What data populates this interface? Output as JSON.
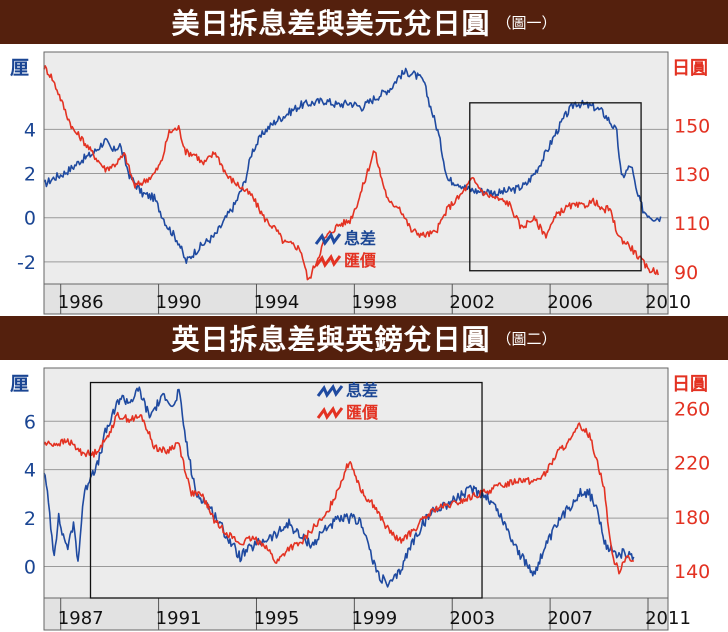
{
  "chart_data": [
    {
      "type": "line",
      "title": "美日拆息差與美元兌日圓",
      "subtitle": "（圖一）",
      "ylabel_left": "厘",
      "ylabel_right": "日圓",
      "xlim": [
        1984.5,
        2010
      ],
      "ylim_left": [
        -3,
        7.5
      ],
      "ylim_right": [
        85,
        180
      ],
      "yticks_left": [
        "4",
        "2",
        "0",
        "-2"
      ],
      "ytick_values_left": [
        4,
        2,
        0,
        -2
      ],
      "yticks_right": [
        "150",
        "130",
        "110",
        "90"
      ],
      "ytick_values_right": [
        150,
        130,
        110,
        90
      ],
      "xticks": [
        "1986",
        "1990",
        "1994",
        "1998",
        "2002",
        "2006",
        "2010"
      ],
      "xtick_values": [
        1986,
        1990,
        1994,
        1998,
        2002,
        2006,
        2010
      ],
      "legend": [
        "息差",
        "匯價"
      ],
      "highlight_box": {
        "x": [
          2001.9,
          2008.9
        ],
        "y_left": [
          -2.4,
          5.2
        ]
      },
      "series": [
        {
          "name": "息差",
          "axis": "left",
          "color": "#1f4aa0",
          "x": [
            1984.5,
            1984.9,
            1985.3,
            1985.7,
            1986.0,
            1986.5,
            1987.0,
            1987.3,
            1987.6,
            1988.0,
            1988.5,
            1989.0,
            1989.5,
            1990.0,
            1990.3,
            1990.7,
            1991.0,
            1991.5,
            1992.0,
            1992.3,
            1992.7,
            1993.0,
            1993.5,
            1994.0,
            1994.3,
            1994.7,
            1995.0,
            1995.5,
            1996.0,
            1996.5,
            1997.0,
            1997.5,
            1998.0,
            1998.3,
            1998.7,
            1999.0,
            1999.3,
            1999.6,
            2000.0,
            2000.3,
            2000.6,
            2001.0,
            2001.4,
            2001.8,
            2002.2,
            2002.6,
            2003.0,
            2003.4,
            2003.8,
            2004.2,
            2004.6,
            2005.0,
            2005.4,
            2005.8,
            2006.2,
            2006.6,
            2007.0,
            2007.3,
            2007.6,
            2007.9,
            2008.1,
            2008.3,
            2008.5,
            2008.7,
            2009.0,
            2009.4,
            2009.7
          ],
          "y": [
            1.5,
            1.8,
            2.0,
            2.3,
            2.6,
            2.9,
            3.5,
            3.0,
            3.3,
            1.9,
            1.1,
            0.9,
            -0.3,
            -1.1,
            -2.0,
            -1.5,
            -1.2,
            -0.8,
            0.1,
            0.6,
            1.6,
            3.0,
            3.9,
            4.4,
            4.6,
            4.9,
            5.1,
            5.2,
            5.3,
            5.1,
            5.2,
            5.0,
            5.4,
            5.6,
            5.9,
            6.4,
            6.6,
            6.5,
            6.2,
            5.0,
            3.9,
            1.7,
            1.6,
            1.3,
            1.2,
            1.2,
            1.1,
            1.2,
            1.3,
            1.5,
            2.1,
            2.9,
            3.8,
            4.6,
            5.2,
            5.1,
            5.0,
            4.8,
            4.4,
            3.9,
            1.8,
            2.1,
            2.4,
            1.2,
            0.3,
            0.0,
            0.0
          ]
        },
        {
          "name": "匯價",
          "axis": "right",
          "color": "#e33222",
          "x": [
            1984.5,
            1984.8,
            1985.1,
            1985.4,
            1985.7,
            1986.0,
            1986.3,
            1986.6,
            1987.0,
            1987.4,
            1987.8,
            1988.2,
            1988.6,
            1989.0,
            1989.3,
            1989.6,
            1990.0,
            1990.3,
            1990.7,
            1991.0,
            1991.5,
            1992.0,
            1992.5,
            1993.0,
            1993.5,
            1994.0,
            1994.3,
            1994.7,
            1995.0,
            1995.3,
            1995.7,
            1996.0,
            1996.5,
            1997.0,
            1997.3,
            1997.6,
            1998.0,
            1998.3,
            1998.6,
            1999.0,
            1999.5,
            2000.0,
            2000.5,
            2001.0,
            2001.5,
            2002.0,
            2002.5,
            2003.0,
            2003.5,
            2004.0,
            2004.5,
            2005.0,
            2005.5,
            2006.0,
            2006.5,
            2007.0,
            2007.3,
            2007.6,
            2008.0,
            2008.4,
            2008.8,
            2009.2,
            2009.6
          ],
          "y": [
            174,
            170,
            163,
            155,
            148,
            145,
            141,
            137,
            132,
            134,
            138,
            125,
            127,
            130,
            135,
            147,
            149,
            139,
            138,
            134,
            139,
            129,
            125,
            121,
            112,
            107,
            102,
            101,
            99,
            86,
            96,
            104,
            109,
            111,
            118,
            127,
            140,
            128,
            118,
            117,
            107,
            105,
            106,
            116,
            121,
            128,
            122,
            120,
            118,
            108,
            112,
            105,
            114,
            117,
            117,
            119,
            115,
            116,
            104,
            101,
            96,
            91,
            90
          ]
        }
      ]
    },
    {
      "type": "line",
      "title": "英日拆息差與英鎊兌日圓",
      "subtitle": "（圖二）",
      "ylabel_left": "厘",
      "ylabel_right": "日圓",
      "xlim": [
        1985.5,
        2011
      ],
      "ylim_left": [
        -1.3,
        8.2
      ],
      "ylim_right": [
        120,
        290
      ],
      "yticks_left": [
        "6",
        "4",
        "2",
        "0"
      ],
      "ytick_values_left": [
        6,
        4,
        2,
        0
      ],
      "yticks_right": [
        "260",
        "220",
        "180",
        "140"
      ],
      "ytick_values_right": [
        260,
        220,
        180,
        140
      ],
      "xticks": [
        "1987",
        "1991",
        "1995",
        "1999",
        "2003",
        "2007",
        "2011"
      ],
      "xtick_values": [
        1987,
        1991,
        1995,
        1999,
        2003,
        2007,
        2011
      ],
      "legend": [
        "息差",
        "匯價"
      ],
      "highlight_box": {
        "x": [
          1987.4,
          2003.4
        ],
        "y_left": [
          -1.3,
          7.6
        ]
      },
      "series": [
        {
          "name": "息差",
          "axis": "left",
          "color": "#1f4aa0",
          "x": [
            1985.5,
            1985.7,
            1985.9,
            1986.1,
            1986.3,
            1986.5,
            1986.7,
            1986.9,
            1987.1,
            1987.4,
            1987.7,
            1988.0,
            1988.3,
            1988.6,
            1989.0,
            1989.4,
            1989.8,
            1990.2,
            1990.5,
            1990.8,
            1991.0,
            1991.3,
            1991.7,
            1992.0,
            1992.5,
            1993.0,
            1993.5,
            1994.0,
            1994.5,
            1995.0,
            1995.5,
            1996.0,
            1996.5,
            1997.0,
            1997.5,
            1998.0,
            1998.5,
            1999.0,
            1999.3,
            1999.6,
            2000.0,
            2000.5,
            2001.0,
            2001.5,
            2002.0,
            2002.5,
            2003.0,
            2003.5,
            2004.0,
            2004.5,
            2005.0,
            2005.5,
            2006.0,
            2006.5,
            2007.0,
            2007.4,
            2007.8,
            2008.1,
            2008.4,
            2008.8,
            2009.2,
            2009.6
          ],
          "y": [
            4.0,
            2.5,
            0.5,
            2.0,
            1.2,
            0.8,
            1.8,
            0.2,
            2.8,
            3.8,
            4.2,
            5.5,
            6.2,
            7.0,
            6.8,
            7.3,
            6.2,
            6.8,
            7.1,
            6.5,
            7.3,
            5.2,
            3.0,
            2.8,
            2.1,
            1.2,
            0.4,
            0.8,
            1.1,
            1.3,
            1.8,
            1.2,
            0.9,
            1.6,
            1.9,
            2.0,
            1.8,
            0.0,
            -0.5,
            -0.8,
            -0.3,
            0.9,
            1.8,
            2.4,
            2.6,
            2.9,
            3.2,
            3.0,
            2.4,
            1.4,
            0.4,
            -0.3,
            0.8,
            1.8,
            2.5,
            3.1,
            3.0,
            2.4,
            0.9,
            0.6,
            0.5,
            0.4
          ]
        },
        {
          "name": "匯價",
          "axis": "right",
          "color": "#e33222",
          "x": [
            1985.5,
            1986.0,
            1986.5,
            1987.0,
            1987.5,
            1988.0,
            1988.5,
            1989.0,
            1989.5,
            1990.0,
            1990.5,
            1991.0,
            1991.5,
            1992.0,
            1992.5,
            1993.0,
            1993.5,
            1994.0,
            1994.5,
            1995.0,
            1995.5,
            1996.0,
            1996.5,
            1997.0,
            1997.5,
            1998.0,
            1998.5,
            1999.0,
            1999.5,
            2000.0,
            2000.5,
            2001.0,
            2001.5,
            2002.0,
            2002.5,
            2003.0,
            2003.5,
            2004.0,
            2004.5,
            2005.0,
            2005.5,
            2006.0,
            2006.5,
            2007.0,
            2007.4,
            2007.8,
            2008.1,
            2008.4,
            2008.7,
            2009.0,
            2009.3,
            2009.6
          ],
          "y": [
            234,
            234,
            236,
            228,
            226,
            236,
            255,
            252,
            254,
            232,
            228,
            235,
            198,
            195,
            176,
            168,
            160,
            164,
            160,
            146,
            157,
            160,
            172,
            180,
            200,
            222,
            198,
            188,
            172,
            162,
            168,
            178,
            186,
            188,
            191,
            195,
            198,
            202,
            205,
            208,
            206,
            212,
            228,
            236,
            248,
            240,
            222,
            200,
            152,
            140,
            152,
            145
          ]
        }
      ]
    }
  ]
}
